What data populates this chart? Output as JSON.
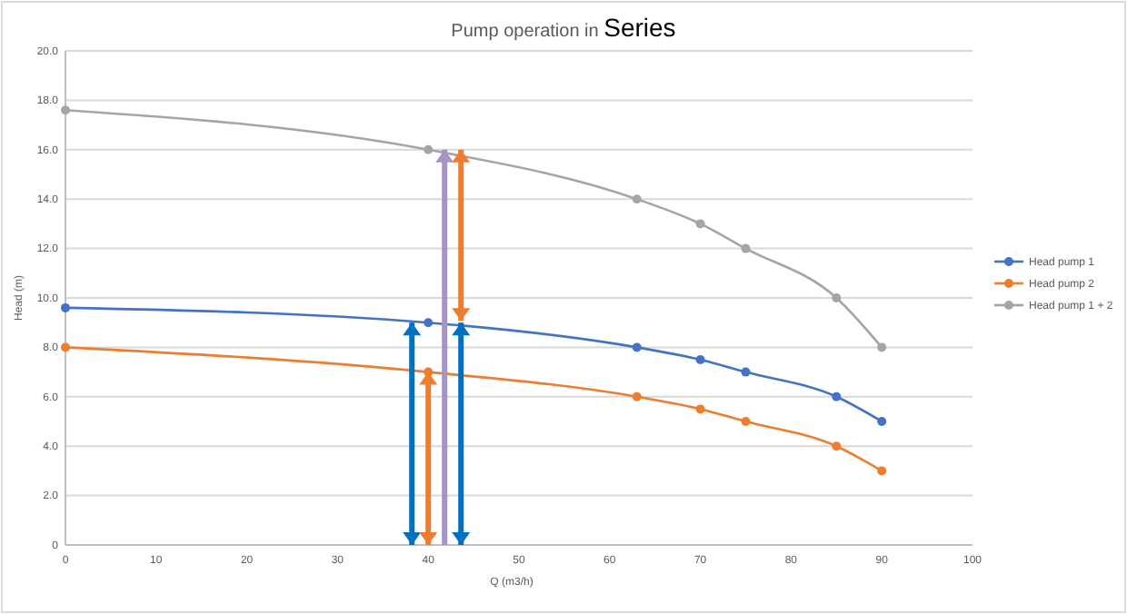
{
  "chart_data": {
    "type": "line",
    "title": "Pump operation in Series",
    "xlabel": "Q (m3/h)",
    "ylabel": "Head (m)",
    "x": [
      0,
      40,
      63,
      70,
      75,
      85,
      90
    ],
    "series": [
      {
        "name": "Head pump 1",
        "color": "#4472c4",
        "values": [
          9.6,
          9.0,
          8.0,
          7.5,
          7.0,
          6.0,
          5.0
        ]
      },
      {
        "name": "Head pump 2",
        "color": "#ed7d31",
        "values": [
          8.0,
          7.0,
          6.0,
          5.5,
          5.0,
          4.0,
          3.0
        ]
      },
      {
        "name": "Head pump 1 + 2",
        "color": "#a5a5a5",
        "values": [
          17.6,
          16.0,
          14.0,
          13.0,
          12.0,
          10.0,
          8.0
        ]
      }
    ],
    "xlim": [
      0,
      100
    ],
    "xticks": [
      0,
      10,
      20,
      30,
      40,
      50,
      60,
      70,
      80,
      90,
      100
    ],
    "ylim": [
      0,
      20
    ],
    "yticks": [
      {
        "value": 0,
        "label": "0"
      },
      {
        "value": 2,
        "label": "2.0"
      },
      {
        "value": 4,
        "label": "4.0"
      },
      {
        "value": 6,
        "label": "6.0"
      },
      {
        "value": 8,
        "label": "8.0"
      },
      {
        "value": 10,
        "label": "10.0"
      },
      {
        "value": 12,
        "label": "12.0"
      },
      {
        "value": 14,
        "label": "14.0"
      },
      {
        "value": 16,
        "label": "16.0"
      },
      {
        "value": 18,
        "label": "18.0"
      },
      {
        "value": 20,
        "label": "20.0"
      }
    ],
    "grid": "y",
    "legend": "right",
    "marker": "circle",
    "line_style": "solid"
  }
}
